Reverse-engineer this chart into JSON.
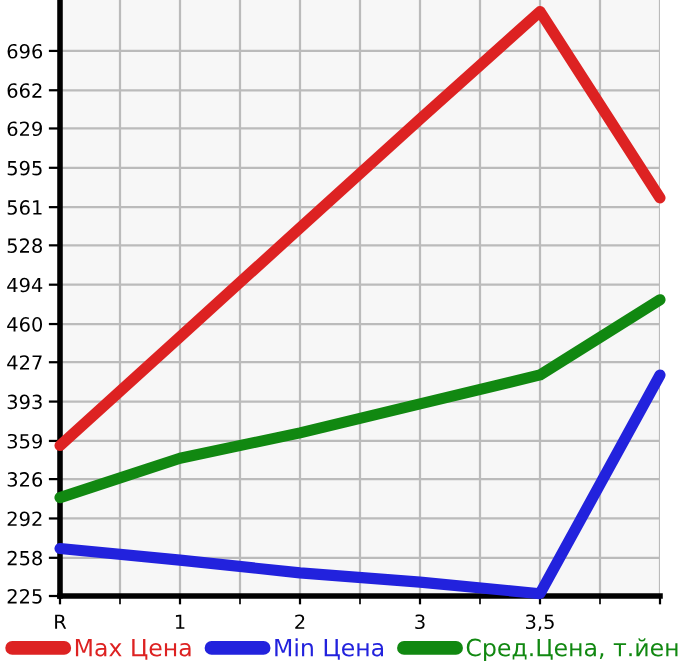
{
  "chart_data": {
    "type": "line",
    "categories": [
      "R",
      "1",
      "2",
      "3",
      "3,5",
      null
    ],
    "series": [
      {
        "name": "Max Цена",
        "color": "#dd2222",
        "values": [
          355,
          449,
          543,
          637,
          730,
          569
        ]
      },
      {
        "name": "Min Цена",
        "color": "#2222dd",
        "values": [
          266,
          256,
          245,
          237,
          227,
          416
        ]
      },
      {
        "name": "Сред.Цена, т.йен",
        "color": "#118811",
        "values": [
          310,
          344,
          366,
          391,
          416,
          481
        ]
      }
    ],
    "ylim": [
      225,
      740
    ],
    "yticks": [
      225,
      258,
      292,
      326,
      359,
      393,
      427,
      460,
      494,
      528,
      561,
      595,
      629,
      662,
      696
    ],
    "grid": true,
    "legend": "bottom",
    "marker": "none",
    "line_style": "solid"
  }
}
